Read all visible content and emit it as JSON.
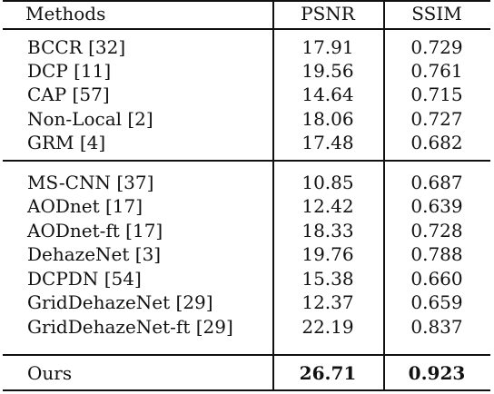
{
  "table": {
    "headers": {
      "method": "Methods",
      "psnr": "PSNR",
      "ssim": "SSIM"
    },
    "groups": [
      [
        {
          "method": "BCCR [32]",
          "psnr": "17.91",
          "ssim": "0.729"
        },
        {
          "method": "DCP [11]",
          "psnr": "19.56",
          "ssim": "0.761"
        },
        {
          "method": "CAP [57]",
          "psnr": "14.64",
          "ssim": "0.715"
        },
        {
          "method": "Non-Local [2]",
          "psnr": "18.06",
          "ssim": "0.727"
        },
        {
          "method": "GRM [4]",
          "psnr": "17.48",
          "ssim": "0.682"
        }
      ],
      [
        {
          "method": "MS-CNN [37]",
          "psnr": "10.85",
          "ssim": "0.687"
        },
        {
          "method": "AODnet [17]",
          "psnr": "12.42",
          "ssim": "0.639"
        },
        {
          "method": "AODnet-ft [17]",
          "psnr": "18.33",
          "ssim": "0.728"
        },
        {
          "method": "DehazeNet [3]",
          "psnr": "19.76",
          "ssim": "0.788"
        },
        {
          "method": "DCPDN [54]",
          "psnr": "15.38",
          "ssim": "0.660"
        },
        {
          "method": "GridDehazeNet [29]",
          "psnr": "12.37",
          "ssim": "0.659"
        },
        {
          "method": "GridDehazeNet-ft [29]",
          "psnr": "22.19",
          "ssim": "0.837"
        }
      ],
      [
        {
          "method": "Ours",
          "psnr": "26.71",
          "ssim": "0.923",
          "bold": true
        }
      ]
    ]
  }
}
